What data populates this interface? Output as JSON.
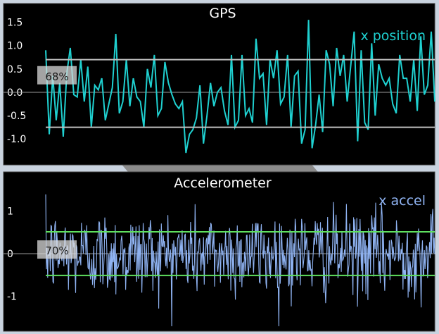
{
  "window": {
    "background": "#c9d3df",
    "panel_color": "#000000",
    "panel_border": "#3a3a3a"
  },
  "chart_data": [
    {
      "type": "line",
      "title": "GPS",
      "legend": "x position",
      "legend_placement": "top-right",
      "ylim": [
        -1.45,
        1.75
      ],
      "yticks": [
        {
          "value": 1.5,
          "label": "1.5"
        },
        {
          "value": 1.0,
          "label": "1.0"
        },
        {
          "value": 0.5,
          "label": "0.5"
        },
        {
          "value": 0.0,
          "label": "0.0"
        },
        {
          "value": -0.5,
          "label": "-0.5"
        },
        {
          "value": -1.0,
          "label": "-1.0"
        }
      ],
      "threshold_lines": [
        0.7,
        -0.75
      ],
      "threshold_color": "#bfbfbf",
      "fraction_label": "68%",
      "zero_line": true,
      "series": [
        {
          "name": "x position",
          "color": "#1fd0d0",
          "values": [
            0.9,
            -0.9,
            0.35,
            -0.6,
            0.2,
            -0.95,
            0.4,
            0.95,
            -0.05,
            -0.1,
            0.7,
            -0.2,
            0.55,
            -0.75,
            0.15,
            0.05,
            0.3,
            -0.6,
            -0.25,
            0.1,
            1.25,
            -0.45,
            -0.2,
            0.7,
            -0.3,
            0.3,
            -0.1,
            -0.2,
            -0.75,
            0.5,
            0.1,
            0.8,
            -0.5,
            -0.35,
            0.65,
            0.2,
            -0.05,
            -0.25,
            -0.35,
            -0.2,
            -1.3,
            -0.9,
            -0.8,
            -0.55,
            0.15,
            -1.1,
            -0.5,
            0.2,
            -0.3,
            0.0,
            0.1,
            -0.4,
            -0.7,
            0.8,
            -0.75,
            -0.6,
            0.8,
            -0.5,
            -0.35,
            -0.65,
            1.15,
            0.3,
            0.4,
            -0.7,
            0.7,
            0.3,
            0.9,
            -0.25,
            -0.1,
            0.8,
            -0.75,
            0.35,
            0.45,
            -1.1,
            -0.8,
            1.55,
            -1.2,
            -0.7,
            -0.05,
            -0.85,
            0.9,
            0.6,
            -0.3,
            0.95,
            0.35,
            0.8,
            -0.2,
            0.55,
            1.3,
            -1.05,
            0.9,
            -0.65,
            -0.8,
            1.05,
            -0.5,
            0.6,
            0.3,
            0.15,
            0.3,
            -0.25,
            -0.45,
            0.8,
            0.3,
            0.3,
            -0.2,
            0.7,
            -0.4,
            1.2,
            -0.05,
            0.15,
            1.3,
            -0.2
          ]
        }
      ]
    },
    {
      "type": "line",
      "title": "Accelerometer",
      "legend": "x accel",
      "legend_placement": "top-right",
      "ylim": [
        -1.75,
        1.55
      ],
      "yticks": [
        {
          "value": 1,
          "label": "1"
        },
        {
          "value": 0,
          "label": "0"
        },
        {
          "value": -1,
          "label": "-1"
        }
      ],
      "threshold_lines": [
        0.51,
        -0.51
      ],
      "threshold_color": "#5fe05f",
      "fraction_label": "70%",
      "zero_line": true,
      "series": [
        {
          "name": "x accel",
          "color": "#8fb3f2",
          "noise_std": 0.5,
          "samples": 600
        }
      ]
    }
  ]
}
